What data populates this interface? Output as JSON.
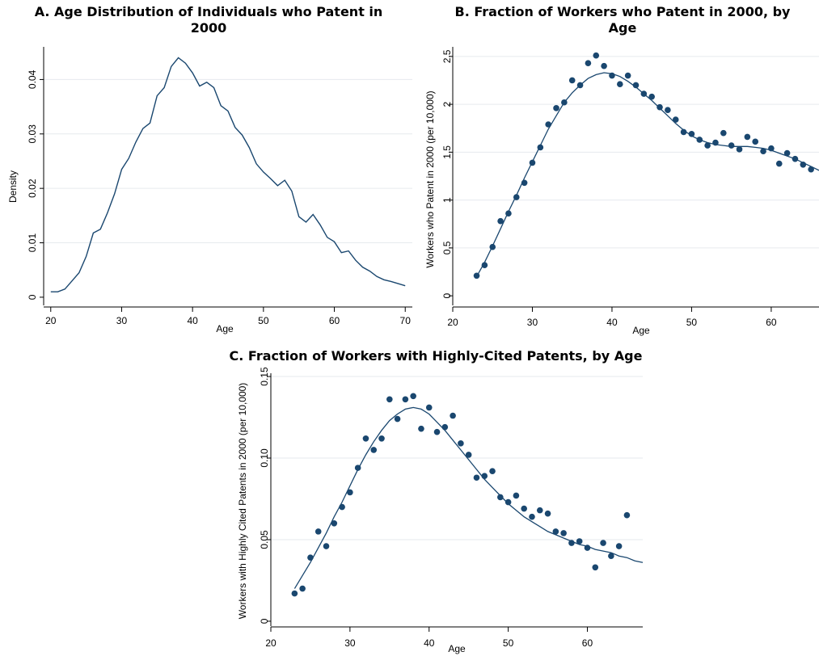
{
  "chart_data": [
    {
      "id": "A",
      "type": "line",
      "title": [
        "A. Age Distribution of Individuals who Patent in",
        "2000"
      ],
      "xlabel": "Age",
      "ylabel": "Density",
      "xlim": [
        19,
        71
      ],
      "ylim": [
        -0.0015,
        0.046
      ],
      "xticks": [
        20,
        30,
        40,
        50,
        60,
        70
      ],
      "yticks": [
        0,
        0.01,
        0.02,
        0.03,
        0.04
      ],
      "ytick_labels": [
        "0",
        "0.01",
        "0.02",
        "0.03",
        "0.04"
      ],
      "grid": true,
      "color": "#1a476f",
      "series": [
        {
          "x": [
            20,
            21,
            22,
            23,
            24,
            25,
            26,
            27,
            28,
            29,
            30,
            31,
            32,
            33,
            34,
            35,
            36,
            37,
            38,
            39,
            40,
            41,
            42,
            43,
            44,
            45,
            46,
            47,
            48,
            49,
            50,
            51,
            52,
            53,
            54,
            55,
            56,
            57,
            58,
            59,
            60,
            61,
            62,
            63,
            64,
            65,
            66,
            67,
            68,
            69,
            70
          ],
          "y": [
            0.001,
            0.001,
            0.0015,
            0.003,
            0.0045,
            0.0075,
            0.0118,
            0.0125,
            0.0155,
            0.019,
            0.0235,
            0.0255,
            0.0285,
            0.031,
            0.032,
            0.037,
            0.0385,
            0.0424,
            0.044,
            0.043,
            0.0412,
            0.0388,
            0.0395,
            0.0385,
            0.0352,
            0.0342,
            0.0312,
            0.0298,
            0.0275,
            0.0245,
            0.023,
            0.0218,
            0.0205,
            0.0215,
            0.0195,
            0.0148,
            0.0138,
            0.0152,
            0.0133,
            0.011,
            0.0102,
            0.0082,
            0.0085,
            0.0068,
            0.0055,
            0.0048,
            0.0038,
            0.0032,
            0.0029,
            0.0025,
            0.0021
          ]
        }
      ]
    },
    {
      "id": "B",
      "type": "scatter",
      "title": [
        "B. Fraction of Workers who Patent in 2000, by",
        "Age"
      ],
      "xlabel": "Age",
      "ylabel": "Workers who Patent in 2000 (per 10,000)",
      "xlim": [
        20,
        66
      ],
      "ylim": [
        -0.1,
        2.6
      ],
      "xticks": [
        20,
        30,
        40,
        50,
        60
      ],
      "yticks": [
        0,
        0.5,
        1,
        1.5,
        2,
        2.5
      ],
      "ytick_labels": [
        "0",
        "0.5",
        "1",
        "1.5",
        "2",
        "2.5"
      ],
      "grid": true,
      "color": "#1a476f",
      "points": {
        "x": [
          23,
          24,
          25,
          26,
          27,
          28,
          29,
          30,
          31,
          32,
          33,
          34,
          35,
          36,
          37,
          38,
          39,
          40,
          41,
          42,
          43,
          44,
          45,
          46,
          47,
          48,
          49,
          50,
          51,
          52,
          53,
          54,
          55,
          56,
          57,
          58,
          59,
          60,
          61,
          62,
          63,
          64,
          65
        ],
        "y": [
          0.21,
          0.32,
          0.51,
          0.78,
          0.86,
          1.03,
          1.18,
          1.39,
          1.55,
          1.79,
          1.96,
          2.02,
          2.25,
          2.2,
          2.43,
          2.51,
          2.4,
          2.3,
          2.21,
          2.3,
          2.2,
          2.11,
          2.08,
          1.97,
          1.94,
          1.84,
          1.71,
          1.69,
          1.63,
          1.57,
          1.6,
          1.7,
          1.57,
          1.53,
          1.66,
          1.61,
          1.51,
          1.54,
          1.38,
          1.49,
          1.43,
          1.37,
          1.32
        ]
      },
      "fit": {
        "x": [
          23,
          24,
          25,
          26,
          27,
          28,
          29,
          30,
          31,
          32,
          33,
          34,
          35,
          36,
          37,
          38,
          39,
          40,
          41,
          42,
          43,
          44,
          45,
          46,
          47,
          48,
          49,
          50,
          51,
          52,
          53,
          54,
          55,
          56,
          57,
          58,
          59,
          60,
          61,
          62,
          63,
          64,
          65,
          66
        ],
        "y": [
          0.2,
          0.35,
          0.52,
          0.7,
          0.88,
          1.05,
          1.23,
          1.4,
          1.57,
          1.74,
          1.88,
          2.02,
          2.12,
          2.2,
          2.27,
          2.31,
          2.33,
          2.32,
          2.29,
          2.24,
          2.18,
          2.11,
          2.04,
          1.96,
          1.88,
          1.8,
          1.73,
          1.67,
          1.63,
          1.6,
          1.58,
          1.57,
          1.56,
          1.56,
          1.56,
          1.55,
          1.54,
          1.52,
          1.49,
          1.46,
          1.43,
          1.39,
          1.35,
          1.31
        ]
      }
    },
    {
      "id": "C",
      "type": "scatter",
      "title": [
        "C. Fraction of Workers with Highly-Cited Patents, by Age"
      ],
      "xlabel": "Age",
      "ylabel": "Workers with Highly Cited Patents in 2000 (per 10,000)",
      "xlim": [
        20,
        67
      ],
      "ylim": [
        -0.003,
        0.152
      ],
      "xticks": [
        20,
        30,
        40,
        50,
        60
      ],
      "yticks": [
        0,
        0.05,
        0.1,
        0.15
      ],
      "ytick_labels": [
        "0",
        "0.05",
        "0.10",
        "0.15"
      ],
      "grid": true,
      "color": "#1a476f",
      "points": {
        "x": [
          23,
          24,
          25,
          26,
          27,
          28,
          29,
          30,
          31,
          32,
          33,
          34,
          35,
          36,
          37,
          38,
          39,
          40,
          41,
          42,
          43,
          44,
          45,
          46,
          47,
          48,
          49,
          50,
          51,
          52,
          53,
          54,
          55,
          56,
          57,
          58,
          59,
          60,
          61,
          62,
          63,
          64,
          65
        ],
        "y": [
          0.017,
          0.02,
          0.039,
          0.055,
          0.046,
          0.06,
          0.07,
          0.079,
          0.094,
          0.112,
          0.105,
          0.112,
          0.136,
          0.124,
          0.136,
          0.138,
          0.118,
          0.131,
          0.116,
          0.119,
          0.126,
          0.109,
          0.102,
          0.088,
          0.089,
          0.092,
          0.076,
          0.073,
          0.077,
          0.069,
          0.064,
          0.068,
          0.066,
          0.055,
          0.054,
          0.048,
          0.049,
          0.045,
          0.033,
          0.048,
          0.04,
          0.046,
          0.065
        ]
      },
      "fit": {
        "x": [
          23,
          24,
          25,
          26,
          27,
          28,
          29,
          30,
          31,
          32,
          33,
          34,
          35,
          36,
          37,
          38,
          39,
          40,
          41,
          42,
          43,
          44,
          45,
          46,
          47,
          48,
          49,
          50,
          51,
          52,
          53,
          54,
          55,
          56,
          57,
          58,
          59,
          60,
          61,
          62,
          63,
          64,
          65,
          66,
          67
        ],
        "y": [
          0.02,
          0.028,
          0.036,
          0.045,
          0.054,
          0.064,
          0.073,
          0.083,
          0.093,
          0.102,
          0.11,
          0.117,
          0.123,
          0.127,
          0.13,
          0.131,
          0.13,
          0.127,
          0.122,
          0.117,
          0.111,
          0.105,
          0.099,
          0.093,
          0.087,
          0.082,
          0.077,
          0.072,
          0.068,
          0.064,
          0.061,
          0.058,
          0.055,
          0.053,
          0.051,
          0.049,
          0.047,
          0.046,
          0.044,
          0.043,
          0.042,
          0.04,
          0.039,
          0.037,
          0.036
        ]
      }
    }
  ]
}
